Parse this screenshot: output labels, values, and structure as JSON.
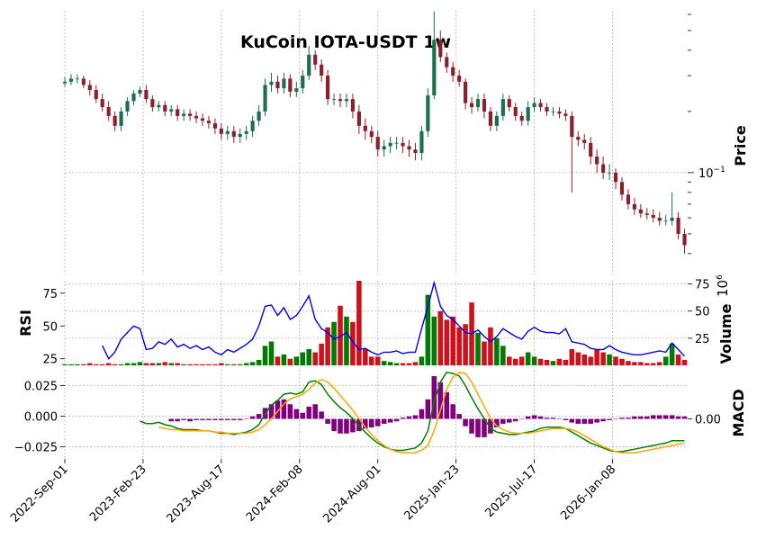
{
  "chart_data": [
    {
      "type": "candlestick",
      "title": "KuCoin IOTA-USDT 1w",
      "ylabel": "Price",
      "log_scale": true,
      "grid": true,
      "up_color": "#1b6f4e",
      "down_color": "#8c1f2b",
      "xlim": [
        0,
        99.5
      ],
      "ylim": [
        0.0316,
        0.625
      ],
      "yticks": [
        {
          "value": 0.1,
          "label": "10",
          "exponent": "−1"
        }
      ],
      "yminorticks": [
        0.04,
        0.05,
        0.06,
        0.07,
        0.08,
        0.09,
        0.2,
        0.3,
        0.4,
        0.5,
        0.6
      ],
      "open": [
        0.275,
        0.28,
        0.29,
        0.29,
        0.27,
        0.255,
        0.23,
        0.21,
        0.19,
        0.17,
        0.2,
        0.225,
        0.245,
        0.255,
        0.23,
        0.21,
        0.215,
        0.2,
        0.205,
        0.19,
        0.195,
        0.19,
        0.185,
        0.18,
        0.175,
        0.165,
        0.155,
        0.16,
        0.15,
        0.155,
        0.16,
        0.18,
        0.2,
        0.27,
        0.28,
        0.26,
        0.29,
        0.25,
        0.26,
        0.3,
        0.38,
        0.34,
        0.3,
        0.23,
        0.23,
        0.225,
        0.23,
        0.2,
        0.17,
        0.16,
        0.15,
        0.13,
        0.135,
        0.14,
        0.14,
        0.135,
        0.13,
        0.125,
        0.16,
        0.24,
        0.45,
        0.37,
        0.33,
        0.3,
        0.28,
        0.22,
        0.21,
        0.23,
        0.2,
        0.17,
        0.19,
        0.23,
        0.21,
        0.19,
        0.18,
        0.21,
        0.22,
        0.21,
        0.2,
        0.2,
        0.195,
        0.19,
        0.15,
        0.145,
        0.14,
        0.12,
        0.11,
        0.1,
        0.1,
        0.09,
        0.078,
        0.07,
        0.066,
        0.063,
        0.062,
        0.06,
        0.058,
        0.058,
        0.06,
        0.05
      ],
      "high": [
        0.295,
        0.305,
        0.305,
        0.3,
        0.285,
        0.27,
        0.245,
        0.225,
        0.2,
        0.21,
        0.235,
        0.255,
        0.265,
        0.27,
        0.24,
        0.225,
        0.225,
        0.215,
        0.215,
        0.205,
        0.205,
        0.2,
        0.195,
        0.19,
        0.185,
        0.175,
        0.17,
        0.17,
        0.165,
        0.17,
        0.19,
        0.215,
        0.29,
        0.31,
        0.3,
        0.31,
        0.305,
        0.28,
        0.32,
        0.42,
        0.4,
        0.36,
        0.32,
        0.245,
        0.245,
        0.245,
        0.245,
        0.215,
        0.185,
        0.17,
        0.16,
        0.145,
        0.15,
        0.15,
        0.15,
        0.145,
        0.14,
        0.17,
        0.26,
        0.62,
        0.5,
        0.39,
        0.35,
        0.32,
        0.29,
        0.235,
        0.245,
        0.245,
        0.21,
        0.2,
        0.245,
        0.24,
        0.22,
        0.2,
        0.225,
        0.235,
        0.23,
        0.22,
        0.21,
        0.21,
        0.205,
        0.2,
        0.16,
        0.155,
        0.15,
        0.13,
        0.12,
        0.11,
        0.105,
        0.095,
        0.083,
        0.075,
        0.07,
        0.067,
        0.066,
        0.064,
        0.062,
        0.08,
        0.064,
        0.053
      ],
      "low": [
        0.265,
        0.27,
        0.275,
        0.26,
        0.24,
        0.22,
        0.2,
        0.18,
        0.16,
        0.16,
        0.19,
        0.215,
        0.235,
        0.22,
        0.2,
        0.2,
        0.19,
        0.19,
        0.18,
        0.18,
        0.18,
        0.175,
        0.17,
        0.165,
        0.155,
        0.145,
        0.145,
        0.14,
        0.14,
        0.145,
        0.15,
        0.17,
        0.19,
        0.25,
        0.245,
        0.245,
        0.235,
        0.235,
        0.245,
        0.285,
        0.32,
        0.28,
        0.215,
        0.215,
        0.21,
        0.21,
        0.185,
        0.155,
        0.145,
        0.14,
        0.12,
        0.12,
        0.125,
        0.13,
        0.125,
        0.12,
        0.115,
        0.115,
        0.15,
        0.23,
        0.35,
        0.31,
        0.28,
        0.265,
        0.205,
        0.195,
        0.2,
        0.185,
        0.16,
        0.16,
        0.18,
        0.2,
        0.18,
        0.17,
        0.17,
        0.2,
        0.2,
        0.19,
        0.19,
        0.185,
        0.18,
        0.08,
        0.135,
        0.13,
        0.11,
        0.1,
        0.093,
        0.092,
        0.083,
        0.073,
        0.066,
        0.062,
        0.06,
        0.059,
        0.057,
        0.055,
        0.055,
        0.055,
        0.047,
        0.04
      ],
      "close": [
        0.28,
        0.29,
        0.29,
        0.27,
        0.255,
        0.23,
        0.21,
        0.19,
        0.17,
        0.2,
        0.225,
        0.245,
        0.255,
        0.23,
        0.21,
        0.215,
        0.2,
        0.205,
        0.19,
        0.195,
        0.19,
        0.185,
        0.18,
        0.175,
        0.165,
        0.155,
        0.16,
        0.15,
        0.155,
        0.16,
        0.18,
        0.2,
        0.27,
        0.28,
        0.26,
        0.29,
        0.25,
        0.26,
        0.3,
        0.38,
        0.34,
        0.3,
        0.23,
        0.23,
        0.225,
        0.23,
        0.2,
        0.17,
        0.16,
        0.15,
        0.13,
        0.135,
        0.14,
        0.14,
        0.135,
        0.13,
        0.125,
        0.16,
        0.24,
        0.45,
        0.37,
        0.33,
        0.3,
        0.28,
        0.22,
        0.21,
        0.23,
        0.2,
        0.17,
        0.19,
        0.23,
        0.21,
        0.19,
        0.18,
        0.21,
        0.22,
        0.21,
        0.2,
        0.2,
        0.195,
        0.19,
        0.15,
        0.145,
        0.14,
        0.12,
        0.11,
        0.1,
        0.1,
        0.09,
        0.078,
        0.07,
        0.066,
        0.063,
        0.062,
        0.06,
        0.058,
        0.058,
        0.06,
        0.05,
        0.044
      ]
    },
    {
      "type": "volume-rsi",
      "ylabel": "RSI",
      "y2label": "Volume",
      "y2_offset": "10",
      "y2_offset_exponent": "6",
      "xlim": [
        0,
        99.5
      ],
      "ylim": [
        20,
        84.5
      ],
      "yticks": [
        25,
        50,
        75
      ],
      "y2lim": [
        0,
        78
      ],
      "y2ticks": [
        25,
        50,
        75
      ],
      "grid": true,
      "rsi_color": "#0000ee",
      "volume_up_color": "#007a00",
      "volume_down_color": "#d0101a",
      "volume": [
        1,
        1,
        1,
        1,
        2,
        1,
        1,
        2,
        1,
        1,
        2,
        2,
        3,
        2,
        2,
        2,
        3,
        2,
        2,
        1,
        1,
        1,
        1,
        1,
        1,
        2,
        1,
        1,
        1,
        2,
        3,
        5,
        18,
        22,
        8,
        10,
        6,
        8,
        12,
        15,
        12,
        20,
        35,
        40,
        55,
        45,
        40,
        78,
        15,
        8,
        8,
        4,
        3,
        2,
        2,
        2,
        3,
        8,
        65,
        45,
        50,
        42,
        45,
        35,
        38,
        58,
        30,
        22,
        35,
        25,
        18,
        8,
        6,
        8,
        12,
        8,
        6,
        5,
        4,
        6,
        5,
        15,
        12,
        10,
        8,
        15,
        12,
        10,
        8,
        6,
        4,
        3,
        3,
        2,
        2,
        3,
        8,
        20,
        10,
        5
      ],
      "rsi": [
        null,
        null,
        null,
        null,
        null,
        null,
        35,
        25,
        30,
        40,
        45,
        50,
        48,
        32,
        33,
        38,
        36,
        40,
        34,
        36,
        33,
        35,
        32,
        34,
        30,
        28,
        32,
        30,
        33,
        36,
        40,
        50,
        65,
        66,
        58,
        64,
        55,
        58,
        65,
        73,
        55,
        48,
        45,
        40,
        42,
        45,
        38,
        32,
        33,
        30,
        28,
        30,
        30,
        31,
        29,
        30,
        30,
        48,
        65,
        83,
        65,
        58,
        55,
        50,
        45,
        44,
        47,
        42,
        38,
        42,
        48,
        45,
        42,
        40,
        46,
        49,
        46,
        45,
        45,
        44,
        48,
        38,
        37,
        36,
        33,
        32,
        32,
        35,
        32,
        30,
        29,
        28,
        28,
        29,
        30,
        31,
        30,
        37,
        32,
        27
      ]
    },
    {
      "type": "macd",
      "ylabel": "MACD",
      "xlim": [
        0,
        99.5
      ],
      "ylim": [
        -0.035,
        0.038
      ],
      "yticks": [
        {
          "value": 0.025,
          "label": "0.025"
        },
        {
          "value": 0,
          "label": "0.000"
        },
        {
          "value": -0.025,
          "label": "−0.025"
        }
      ],
      "y2lim": [
        -0.0328,
        0.0402
      ],
      "y2ticks": [
        {
          "value": 0,
          "label": "0.00"
        }
      ],
      "grid": true,
      "macd_color": "#008000",
      "signal_color": "#ffa500",
      "hist_color": "#800080",
      "xticks": [
        {
          "value": 0,
          "label": "2022-Sep-01"
        },
        {
          "value": 12.5,
          "label": "2023-Feb-23"
        },
        {
          "value": 25,
          "label": "2023-Aug-17"
        },
        {
          "value": 37.5,
          "label": "2024-Feb-08"
        },
        {
          "value": 50,
          "label": "2024-Aug-01"
        },
        {
          "value": 62.5,
          "label": "2025-Jan-23"
        },
        {
          "value": 75,
          "label": "2025-Jul-17"
        },
        {
          "value": 87.5,
          "label": "2026-Jan-08"
        }
      ],
      "macd": [
        null,
        null,
        null,
        null,
        null,
        null,
        null,
        null,
        null,
        null,
        null,
        null,
        -0.004,
        -0.006,
        -0.006,
        -0.005,
        -0.007,
        -0.008,
        -0.01,
        -0.011,
        -0.011,
        -0.011,
        -0.012,
        -0.012,
        -0.013,
        -0.014,
        -0.014,
        -0.015,
        -0.014,
        -0.013,
        -0.011,
        -0.007,
        0.002,
        0.009,
        0.013,
        0.018,
        0.019,
        0.018,
        0.02,
        0.028,
        0.029,
        0.026,
        0.018,
        0.012,
        0.007,
        0.003,
        -0.002,
        -0.008,
        -0.013,
        -0.018,
        -0.022,
        -0.025,
        -0.027,
        -0.028,
        -0.028,
        -0.027,
        -0.026,
        -0.022,
        -0.012,
        0.012,
        0.028,
        0.036,
        0.035,
        0.033,
        0.025,
        0.015,
        0.006,
        -0.002,
        -0.01,
        -0.013,
        -0.014,
        -0.015,
        -0.015,
        -0.014,
        -0.013,
        -0.012,
        -0.01,
        -0.009,
        -0.009,
        -0.009,
        -0.01,
        -0.013,
        -0.016,
        -0.019,
        -0.022,
        -0.024,
        -0.026,
        -0.028,
        -0.029,
        -0.029,
        -0.028,
        -0.027,
        -0.026,
        -0.025,
        -0.024,
        -0.023,
        -0.022,
        -0.02,
        -0.02,
        -0.02
      ],
      "signal": [
        null,
        null,
        null,
        null,
        null,
        null,
        null,
        null,
        null,
        null,
        null,
        null,
        null,
        null,
        null,
        -0.009,
        -0.01,
        -0.011,
        -0.011,
        -0.012,
        -0.012,
        -0.012,
        -0.012,
        -0.012,
        -0.013,
        -0.013,
        -0.014,
        -0.014,
        -0.014,
        -0.014,
        -0.013,
        -0.011,
        -0.007,
        -0.002,
        0.004,
        0.01,
        0.014,
        0.016,
        0.018,
        0.022,
        0.027,
        0.03,
        0.028,
        0.023,
        0.017,
        0.011,
        0.005,
        -0.002,
        -0.009,
        -0.015,
        -0.02,
        -0.024,
        -0.027,
        -0.029,
        -0.03,
        -0.03,
        -0.03,
        -0.028,
        -0.024,
        -0.012,
        0.005,
        0.022,
        0.032,
        0.036,
        0.035,
        0.028,
        0.018,
        0.008,
        -0.002,
        -0.008,
        -0.011,
        -0.013,
        -0.014,
        -0.014,
        -0.014,
        -0.013,
        -0.012,
        -0.011,
        -0.01,
        -0.01,
        -0.01,
        -0.011,
        -0.013,
        -0.016,
        -0.019,
        -0.022,
        -0.025,
        -0.027,
        -0.029,
        -0.03,
        -0.03,
        -0.03,
        -0.029,
        -0.028,
        -0.027,
        -0.026,
        -0.025,
        -0.024,
        -0.023,
        -0.022
      ],
      "hist": [
        null,
        null,
        null,
        null,
        null,
        null,
        null,
        null,
        null,
        null,
        null,
        null,
        null,
        null,
        null,
        null,
        null,
        -0.002,
        -0.002,
        -0.001,
        -0.002,
        -0.001,
        -0.001,
        -0.001,
        -0.001,
        -0.001,
        -0.001,
        -0.001,
        -0.001,
        0,
        0.002,
        0.004,
        0.009,
        0.012,
        0.015,
        0.016,
        0.012,
        0.008,
        0.005,
        0.01,
        0.012,
        0.006,
        -0.004,
        -0.01,
        -0.012,
        -0.012,
        -0.011,
        -0.01,
        -0.008,
        -0.007,
        -0.006,
        -0.004,
        -0.003,
        -0.002,
        0.001,
        0.002,
        0.003,
        0.008,
        0.016,
        0.035,
        0.03,
        0.022,
        0.012,
        0.004,
        -0.006,
        -0.012,
        -0.015,
        -0.015,
        -0.012,
        -0.007,
        -0.004,
        -0.003,
        -0.002,
        0,
        0.002,
        0.003,
        0.002,
        0.001,
        0.001,
        0,
        -0.001,
        -0.003,
        -0.004,
        -0.004,
        -0.004,
        -0.003,
        -0.002,
        -0.001,
        0,
        0.001,
        0.001,
        0.002,
        0.002,
        0.002,
        0.003,
        0.003,
        0.003,
        0.003,
        0.002,
        0.002
      ]
    }
  ]
}
